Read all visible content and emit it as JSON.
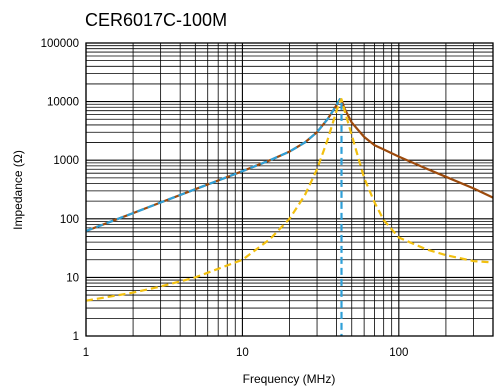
{
  "chart_data": {
    "type": "line",
    "title": "CER6017C-100M",
    "xlabel": "Frequency (MHz)",
    "ylabel": "Impedance (Ω)",
    "x_scale": "log",
    "y_scale": "log",
    "xlim": [
      1,
      400
    ],
    "ylim": [
      1,
      100000
    ],
    "x_ticks": [
      {
        "value": 1,
        "label": "1"
      },
      {
        "value": 10,
        "label": "10"
      },
      {
        "value": 100,
        "label": "100"
      }
    ],
    "y_ticks": [
      {
        "value": 1,
        "label": "1"
      },
      {
        "value": 10,
        "label": "10"
      },
      {
        "value": 100,
        "label": "100"
      },
      {
        "value": 1000,
        "label": "1000"
      },
      {
        "value": 10000,
        "label": "10000"
      },
      {
        "value": 100000,
        "label": "100000"
      }
    ],
    "grid": true,
    "legend": "none",
    "series": [
      {
        "color": "#9c4a0c",
        "dash": "solid",
        "x": [
          1,
          2,
          3,
          5,
          7,
          10,
          15,
          20,
          25,
          30,
          35,
          38,
          40,
          42,
          43,
          45,
          50,
          60,
          70,
          100,
          150,
          200,
          300,
          400
        ],
        "y": [
          62,
          125,
          190,
          320,
          450,
          650,
          1000,
          1400,
          2000,
          3000,
          5000,
          7000,
          8800,
          11000,
          10500,
          7600,
          4400,
          2500,
          1800,
          1150,
          720,
          520,
          330,
          230
        ]
      },
      {
        "color": "#2fa0d8",
        "dash": "dashed",
        "x": [
          1,
          2,
          3,
          5,
          7,
          10,
          15,
          20,
          25,
          30,
          35,
          38,
          40,
          42,
          43,
          43,
          43
        ],
        "y": [
          62,
          125,
          190,
          320,
          450,
          650,
          1000,
          1400,
          2000,
          3000,
          5000,
          7000,
          8800,
          11000,
          10500,
          10000,
          1
        ]
      },
      {
        "color": "#f2c010",
        "dash": "dashed",
        "x": [
          1,
          2,
          3,
          5,
          7,
          10,
          15,
          20,
          25,
          30,
          35,
          40,
          42,
          43,
          45,
          50,
          60,
          70,
          80,
          100,
          150,
          200,
          300,
          400
        ],
        "y": [
          4,
          5.5,
          7,
          10,
          14,
          20,
          45,
          100,
          250,
          700,
          2200,
          7000,
          10000,
          11000,
          7000,
          2700,
          500,
          190,
          95,
          48,
          30,
          24,
          19,
          18
        ]
      }
    ]
  }
}
